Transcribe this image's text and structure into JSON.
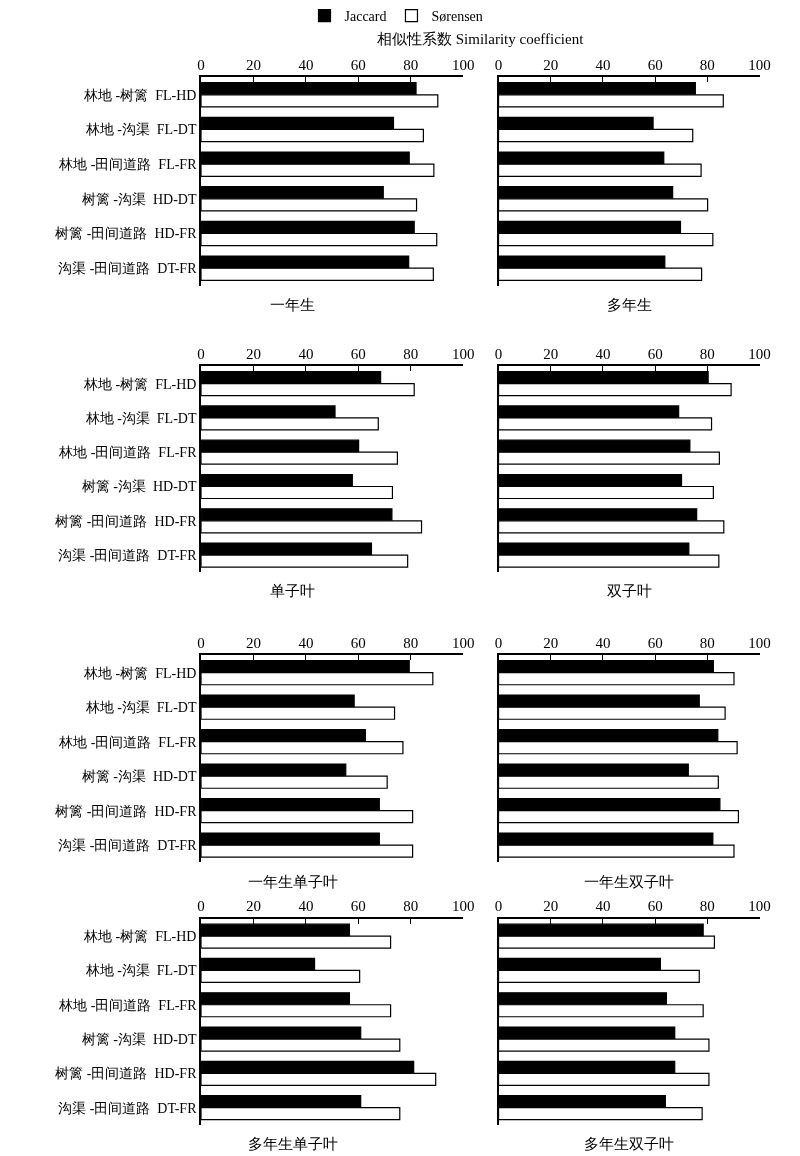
{
  "chart_data": [
    {
      "type": "bar",
      "orientation": "horizontal",
      "title": "一年生",
      "xlabel": "相似性系数 Similarity coefficient",
      "legend": "top",
      "categories": [
        "林地 -树篱  FL-HD",
        "林地 -沟渠  FL-DT",
        "林地 -田间道路  FL-FR",
        "树篱 -沟渠  HD-DT",
        "树篱 -田间道路  HD-FR",
        "沟渠 -田间道路  DT-FR"
      ],
      "xlim": [
        0,
        100
      ],
      "xticks": [
        0,
        20,
        40,
        60,
        80,
        100
      ],
      "series": [
        {
          "name": "Jaccard",
          "color": "#000000",
          "values": [
            82,
            73.4,
            79.4,
            69.5,
            81.3,
            79.2
          ]
        },
        {
          "name": "Sørensen",
          "color": "#ffffff",
          "values": [
            90.3,
            84.8,
            88.8,
            82.2,
            89.9,
            88.6
          ]
        }
      ]
    },
    {
      "type": "bar",
      "orientation": "horizontal",
      "title": "多年生",
      "tick_labels": "x",
      "categories": [
        "林地 -树篱  FL-HD",
        "林地 -沟渠  FL-DT",
        "林地 -田间道路  FL-FR",
        "树篱 -沟渠  HD-DT",
        "树篱 -田间道路  HD-FR",
        "沟渠 -田间道路  DT-FR"
      ],
      "xlim": [
        0,
        100
      ],
      "xticks": [
        0,
        20,
        40,
        60,
        80,
        100
      ],
      "series": [
        {
          "color": "#000000",
          "values": [
            75.4,
            59.2,
            63.3,
            66.7,
            69.7,
            63.7
          ]
        },
        {
          "color": "#ffffff",
          "values": [
            86.1,
            74.4,
            77.6,
            80.1,
            82.1,
            77.8
          ]
        }
      ]
    },
    {
      "type": "bar",
      "orientation": "horizontal",
      "title": "单子叶",
      "categories": [
        "林地 -树篱  FL-HD",
        "林地 -沟渠  FL-DT",
        "林地 -田间道路  FL-FR",
        "树篱 -沟渠  HD-DT",
        "树篱 -田间道路  HD-FR",
        "沟渠 -田间道路  DT-FR"
      ],
      "xlim": [
        0,
        100
      ],
      "xticks": [
        0,
        20,
        40,
        60,
        80,
        100
      ],
      "series": [
        {
          "color": "#000000",
          "values": [
            68.5,
            51.1,
            60.1,
            57.7,
            72.8,
            65
          ]
        },
        {
          "color": "#ffffff",
          "values": [
            81.3,
            67.6,
            74.9,
            73,
            84.1,
            78.8
          ]
        }
      ]
    },
    {
      "type": "bar",
      "orientation": "horizontal",
      "title": "双子叶",
      "tick_labels": "x",
      "categories": [
        "林地 -树篱  FL-HD",
        "林地 -沟渠  FL-DT",
        "林地 -田间道路  FL-FR",
        "树篱 -沟渠  HD-DT",
        "树篱 -田间道路  HD-FR",
        "沟渠 -田间道路  DT-FR"
      ],
      "xlim": [
        0,
        100
      ],
      "xticks": [
        0,
        20,
        40,
        60,
        80,
        100
      ],
      "series": [
        {
          "color": "#000000",
          "values": [
            80.3,
            69,
            73.3,
            70.1,
            75.9,
            72.9
          ]
        },
        {
          "color": "#ffffff",
          "values": [
            89.1,
            81.6,
            84.6,
            82.3,
            86.3,
            84.4
          ]
        }
      ]
    },
    {
      "type": "bar",
      "orientation": "horizontal",
      "title": "一年生单子叶",
      "categories": [
        "林地 -树篱  FL-HD",
        "林地 -沟渠  FL-DT",
        "林地 -田间道路  FL-FR",
        "树篱 -沟渠  HD-DT",
        "树篱 -田间道路  HD-FR",
        "沟渠 -田间道路  DT-FR"
      ],
      "xlim": [
        0,
        100
      ],
      "xticks": [
        0,
        20,
        40,
        60,
        80,
        100
      ],
      "series": [
        {
          "color": "#000000",
          "values": [
            79.4,
            58.4,
            62.7,
            55.2,
            68,
            68
          ]
        },
        {
          "color": "#ffffff",
          "values": [
            88.4,
            73.8,
            77,
            71,
            80.7,
            80.7
          ]
        }
      ]
    },
    {
      "type": "bar",
      "orientation": "horizontal",
      "title": "一年生双子叶",
      "tick_labels": "x",
      "categories": [
        "林地 -树篱  FL-HD",
        "林地 -沟渠  FL-DT",
        "林地 -田间道路  FL-FR",
        "树篱 -沟渠  HD-DT",
        "树篱 -田间道路  HD-FR",
        "沟渠 -田间道路  DT-FR"
      ],
      "xlim": [
        0,
        100
      ],
      "xticks": [
        0,
        20,
        40,
        60,
        80,
        100
      ],
      "series": [
        {
          "color": "#000000",
          "values": [
            82.3,
            76.9,
            84,
            72.7,
            84.8,
            82.1
          ]
        },
        {
          "color": "#ffffff",
          "values": [
            90.2,
            86.8,
            91.4,
            84.2,
            91.9,
            90.2
          ]
        }
      ]
    },
    {
      "type": "bar",
      "orientation": "horizontal",
      "title": "多年生单子叶",
      "categories": [
        "林地 -树篱  FL-HD",
        "林地 -沟渠  FL-DT",
        "林地 -田间道路  FL-FR",
        "树篱 -沟渠  HD-DT",
        "树篱 -田间道路  HD-FR",
        "沟渠 -田间道路  DT-FR"
      ],
      "xlim": [
        0,
        100
      ],
      "xticks": [
        0,
        20,
        40,
        60,
        80,
        100
      ],
      "series": [
        {
          "color": "#000000",
          "values": [
            56.6,
            43.3,
            56.6,
            60.9,
            81.1,
            60.9
          ]
        },
        {
          "color": "#ffffff",
          "values": [
            72.3,
            60.5,
            72.3,
            75.8,
            89.5,
            75.8
          ]
        }
      ]
    },
    {
      "type": "bar",
      "orientation": "horizontal",
      "title": "多年生双子叶",
      "tick_labels": "x",
      "categories": [
        "林地 -树篱  FL-HD",
        "林地 -沟渠  FL-DT",
        "林地 -田间道路  FL-FR",
        "树篱 -沟渠  HD-DT",
        "树篱 -田间道路  HD-FR",
        "沟渠 -田间道路  DT-FR"
      ],
      "xlim": [
        0,
        100
      ],
      "xticks": [
        0,
        20,
        40,
        60,
        80,
        100
      ],
      "series": [
        {
          "color": "#000000",
          "values": [
            78.4,
            62,
            64.3,
            67.5,
            67.5,
            63.9
          ]
        },
        {
          "color": "#ffffff",
          "values": [
            82.7,
            76.9,
            78.4,
            80.6,
            80.6,
            78
          ]
        }
      ]
    }
  ]
}
